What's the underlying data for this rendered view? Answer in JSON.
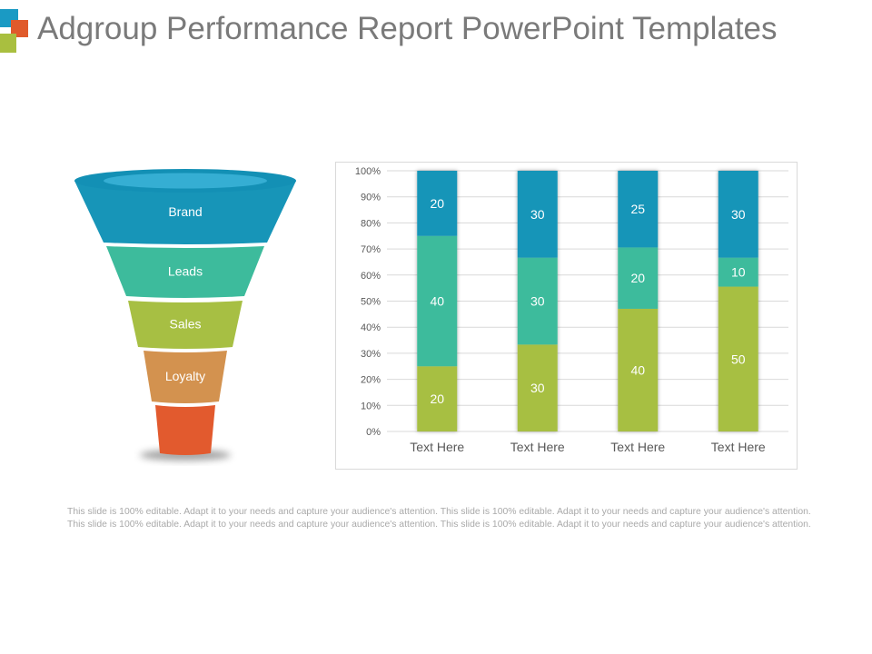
{
  "slide": {
    "title": "Adgroup Performance Report PowerPoint Templates",
    "body_text": "This slide is 100% editable. Adapt it to your needs and capture your audience's attention. This slide is 100% editable. Adapt it to your needs and capture your audience's attention. This slide is 100% editable. Adapt it to your needs and capture your audience's attention. This slide is 100% editable. Adapt it to your needs and capture your audience's attention."
  },
  "logo": {
    "colors": [
      "#1a9ac4",
      "#e05a2b",
      "#a9bf3f"
    ]
  },
  "funnel": {
    "stages": [
      {
        "label": "Brand",
        "color": "#1795b8"
      },
      {
        "label": "Leads",
        "color": "#3dbb9c"
      },
      {
        "label": "Sales",
        "color": "#a7bf43"
      },
      {
        "label": "Loyalty",
        "color": "#d3924f"
      },
      {
        "label": "",
        "color": "#e25a2e"
      }
    ]
  },
  "chart_data": {
    "type": "bar",
    "stacked": true,
    "percent_stacked": true,
    "categories": [
      "Text Here",
      "Text Here",
      "Text Here",
      "Text Here"
    ],
    "series": [
      {
        "color": "#a7bf43",
        "values": [
          20,
          30,
          40,
          50
        ]
      },
      {
        "color": "#3dbb9c",
        "values": [
          40,
          30,
          20,
          10
        ]
      },
      {
        "color": "#1795b8",
        "values": [
          20,
          30,
          25,
          30
        ]
      }
    ],
    "ylim": [
      0,
      100
    ],
    "yticks": [
      "0%",
      "10%",
      "20%",
      "30%",
      "40%",
      "50%",
      "60%",
      "70%",
      "80%",
      "90%",
      "100%"
    ],
    "grid": true,
    "legend": "none",
    "label_color": "#ffffff"
  }
}
